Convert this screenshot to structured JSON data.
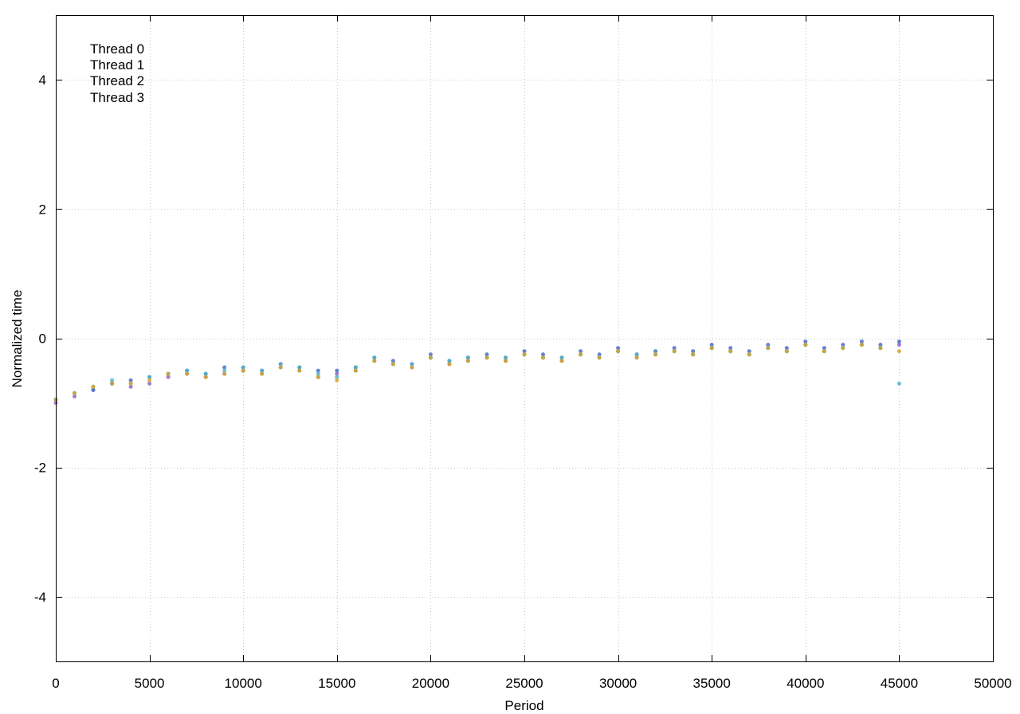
{
  "chart_data": {
    "type": "scatter",
    "title": "",
    "xlabel": "Period",
    "ylabel": "Normalized time",
    "xlim": [
      0,
      50000
    ],
    "ylim": [
      -5,
      5
    ],
    "x_ticks": [
      0,
      5000,
      10000,
      15000,
      20000,
      25000,
      30000,
      35000,
      40000,
      45000,
      50000
    ],
    "x_tick_labels": [
      "0",
      "5000",
      "10000",
      "15000",
      "20000",
      "25000",
      "30000",
      "35000",
      "40000",
      "45000",
      "50000"
    ],
    "y_ticks": [
      -4,
      -2,
      0,
      2,
      4
    ],
    "y_tick_labels": [
      "-4",
      "-2",
      "0",
      "2",
      "4"
    ],
    "grid": true,
    "legend_position": "top-left",
    "series": [
      {
        "name": "Thread 0",
        "color": "#9466c4",
        "x": [
          0,
          1000,
          2000,
          3000,
          4000,
          5000,
          6000,
          7000,
          8000,
          9000,
          10000,
          11000,
          12000,
          13000,
          14000,
          15000,
          16000,
          17000,
          18000,
          19000,
          20000,
          21000,
          22000,
          23000,
          24000,
          25000,
          26000,
          27000,
          28000,
          29000,
          30000,
          31000,
          32000,
          33000,
          34000,
          35000,
          36000,
          37000,
          38000,
          39000,
          40000,
          41000,
          42000,
          43000,
          44000,
          45000
        ],
        "y": [
          -1.0,
          -0.9,
          -0.8,
          -0.7,
          -0.75,
          -0.7,
          -0.6,
          -0.55,
          -0.6,
          -0.55,
          -0.5,
          -0.55,
          -0.45,
          -0.5,
          -0.6,
          -0.55,
          -0.5,
          -0.35,
          -0.4,
          -0.45,
          -0.3,
          -0.4,
          -0.35,
          -0.3,
          -0.35,
          -0.25,
          -0.3,
          -0.35,
          -0.25,
          -0.3,
          -0.2,
          -0.3,
          -0.25,
          -0.2,
          -0.25,
          -0.15,
          -0.2,
          -0.25,
          -0.15,
          -0.2,
          -0.1,
          -0.2,
          -0.15,
          -0.1,
          -0.15,
          -0.1
        ]
      },
      {
        "name": "Thread 1",
        "color": "#4a6fc9",
        "x": [
          0,
          1000,
          2000,
          3000,
          4000,
          5000,
          6000,
          7000,
          8000,
          9000,
          10000,
          11000,
          12000,
          13000,
          14000,
          15000,
          16000,
          17000,
          18000,
          19000,
          20000,
          21000,
          22000,
          23000,
          24000,
          25000,
          26000,
          27000,
          28000,
          29000,
          30000,
          31000,
          32000,
          33000,
          34000,
          35000,
          36000,
          37000,
          38000,
          39000,
          40000,
          41000,
          42000,
          43000,
          44000,
          45000
        ],
        "y": [
          -0.95,
          -0.85,
          -0.8,
          -0.7,
          -0.65,
          -0.6,
          -0.55,
          -0.5,
          -0.55,
          -0.45,
          -0.45,
          -0.5,
          -0.4,
          -0.45,
          -0.5,
          -0.5,
          -0.45,
          -0.3,
          -0.35,
          -0.4,
          -0.25,
          -0.35,
          -0.3,
          -0.25,
          -0.3,
          -0.2,
          -0.25,
          -0.3,
          -0.2,
          -0.25,
          -0.15,
          -0.25,
          -0.2,
          -0.15,
          -0.2,
          -0.1,
          -0.15,
          -0.2,
          -0.1,
          -0.15,
          -0.05,
          -0.15,
          -0.1,
          -0.05,
          -0.1,
          -0.05
        ]
      },
      {
        "name": "Thread 2",
        "color": "#52b3c9",
        "x": [
          0,
          1000,
          2000,
          3000,
          4000,
          5000,
          6000,
          7000,
          8000,
          9000,
          10000,
          11000,
          12000,
          13000,
          14000,
          15000,
          16000,
          17000,
          18000,
          19000,
          20000,
          21000,
          22000,
          23000,
          24000,
          25000,
          26000,
          27000,
          28000,
          29000,
          30000,
          31000,
          32000,
          33000,
          34000,
          35000,
          36000,
          37000,
          38000,
          39000,
          40000,
          41000,
          42000,
          43000,
          44000,
          45000
        ],
        "y": [
          -0.95,
          -0.85,
          -0.75,
          -0.65,
          -0.7,
          -0.6,
          -0.55,
          -0.5,
          -0.55,
          -0.5,
          -0.45,
          -0.5,
          -0.4,
          -0.45,
          -0.55,
          -0.6,
          -0.45,
          -0.3,
          -0.4,
          -0.4,
          -0.3,
          -0.35,
          -0.3,
          -0.3,
          -0.3,
          -0.25,
          -0.3,
          -0.3,
          -0.25,
          -0.3,
          -0.2,
          -0.25,
          -0.25,
          -0.2,
          -0.25,
          -0.15,
          -0.2,
          -0.25,
          -0.15,
          -0.2,
          -0.1,
          -0.2,
          -0.15,
          -0.1,
          -0.15,
          -0.7
        ]
      },
      {
        "name": "Thread 3",
        "color": "#d4a72c",
        "x": [
          0,
          1000,
          2000,
          3000,
          4000,
          5000,
          6000,
          7000,
          8000,
          9000,
          10000,
          11000,
          12000,
          13000,
          14000,
          15000,
          16000,
          17000,
          18000,
          19000,
          20000,
          21000,
          22000,
          23000,
          24000,
          25000,
          26000,
          27000,
          28000,
          29000,
          30000,
          31000,
          32000,
          33000,
          34000,
          35000,
          36000,
          37000,
          38000,
          39000,
          40000,
          41000,
          42000,
          43000,
          44000,
          45000
        ],
        "y": [
          -0.95,
          -0.85,
          -0.75,
          -0.7,
          -0.7,
          -0.65,
          -0.55,
          -0.55,
          -0.6,
          -0.55,
          -0.5,
          -0.55,
          -0.45,
          -0.5,
          -0.6,
          -0.65,
          -0.5,
          -0.35,
          -0.4,
          -0.45,
          -0.3,
          -0.4,
          -0.35,
          -0.3,
          -0.35,
          -0.25,
          -0.3,
          -0.35,
          -0.25,
          -0.3,
          -0.2,
          -0.3,
          -0.25,
          -0.2,
          -0.25,
          -0.15,
          -0.2,
          -0.25,
          -0.15,
          -0.2,
          -0.1,
          -0.2,
          -0.15,
          -0.1,
          -0.15,
          -0.2
        ]
      }
    ]
  }
}
